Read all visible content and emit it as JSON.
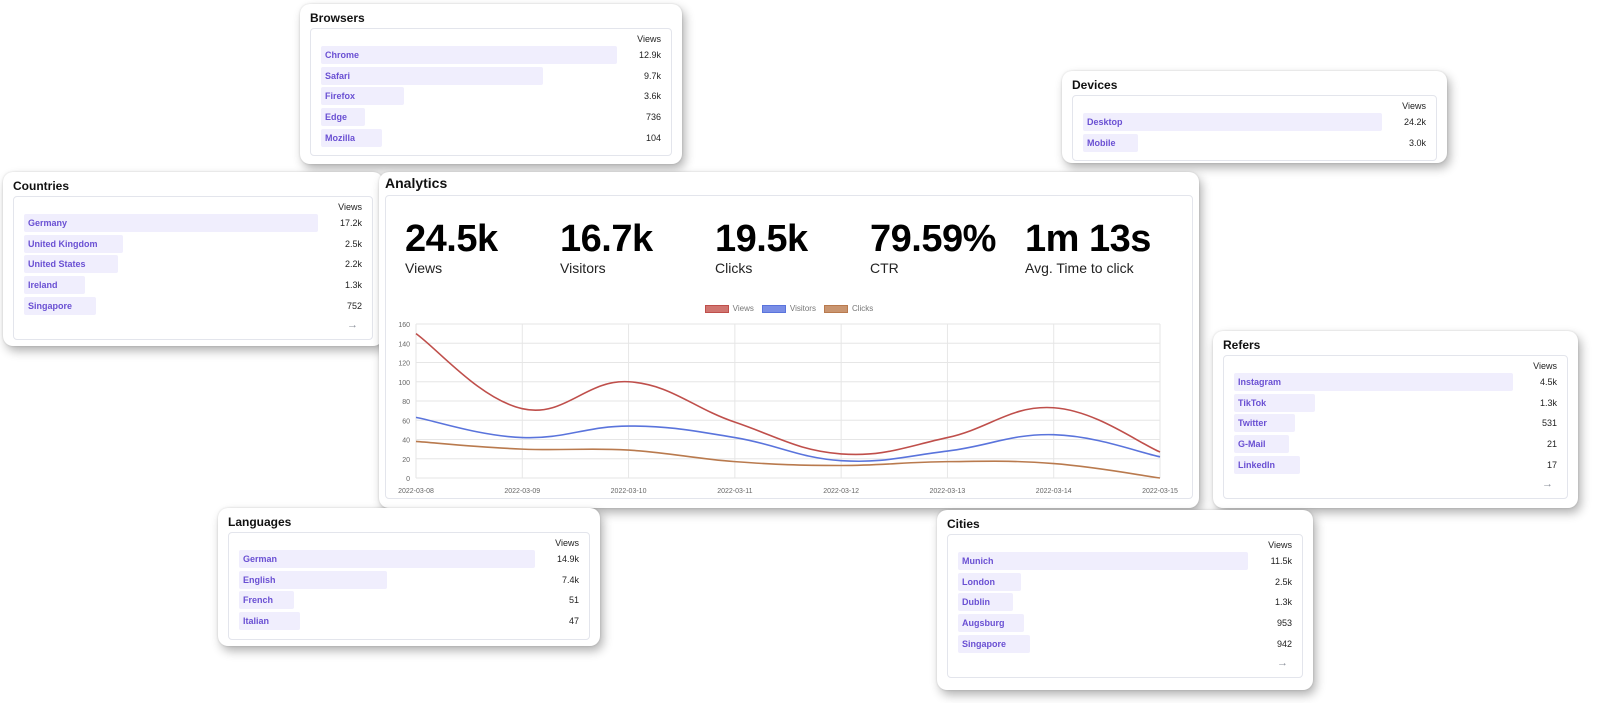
{
  "views_header": "Views",
  "more_icon": "→",
  "analytics": {
    "title": "Analytics",
    "stats": [
      {
        "value": "24.5k",
        "label": "Views"
      },
      {
        "value": "16.7k",
        "label": "Visitors"
      },
      {
        "value": "19.5k",
        "label": "Clicks"
      },
      {
        "value": "79.59%",
        "label": "CTR"
      },
      {
        "value": "1m 13s",
        "label": "Avg. Time to click"
      }
    ]
  },
  "chart_data": {
    "type": "line",
    "title": "",
    "xlabel": "",
    "ylabel": "",
    "x": [
      "2022-03-08",
      "2022-03-09",
      "2022-03-10",
      "2022-03-11",
      "2022-03-12",
      "2022-03-13",
      "2022-03-14",
      "2022-03-15"
    ],
    "ylim": [
      0,
      160
    ],
    "yticks": [
      0,
      20,
      40,
      60,
      80,
      100,
      120,
      140,
      160
    ],
    "grid": true,
    "legend": "top-center",
    "series": [
      {
        "name": "Views",
        "values": [
          150,
          72,
          100,
          58,
          25,
          42,
          73,
          27
        ],
        "color": "#bf4f4b",
        "fill": "#d07570"
      },
      {
        "name": "Visitors",
        "values": [
          63,
          42,
          54,
          42,
          18,
          28,
          45,
          22
        ],
        "color": "#5a74dc",
        "fill": "#7a8ee6"
      },
      {
        "name": "Clicks",
        "values": [
          38,
          30,
          29,
          17,
          13,
          17,
          15,
          0
        ],
        "color": "#b97a4e",
        "fill": "#c99570"
      }
    ]
  },
  "browsers": {
    "title": "Browsers",
    "rows": [
      {
        "label": "Chrome",
        "value": "12.9k",
        "fraction": 1.0
      },
      {
        "label": "Safari",
        "value": "9.7k",
        "fraction": 0.75
      },
      {
        "label": "Firefox",
        "value": "3.6k",
        "fraction": 0.28
      },
      {
        "label": "Edge",
        "value": "736",
        "fraction": 0.057
      },
      {
        "label": "Mozilla",
        "value": "104",
        "fraction": 0.008
      }
    ]
  },
  "devices": {
    "title": "Devices",
    "rows": [
      {
        "label": "Desktop",
        "value": "24.2k",
        "fraction": 1.0
      },
      {
        "label": "Mobile",
        "value": "3.0k",
        "fraction": 0.124
      }
    ]
  },
  "countries": {
    "title": "Countries",
    "rows": [
      {
        "label": "Germany",
        "value": "17.2k",
        "fraction": 1.0
      },
      {
        "label": "United Kingdom",
        "value": "2.5k",
        "fraction": 0.145
      },
      {
        "label": "United States",
        "value": "2.2k",
        "fraction": 0.128
      },
      {
        "label": "Ireland",
        "value": "1.3k",
        "fraction": 0.076
      },
      {
        "label": "Singapore",
        "value": "752",
        "fraction": 0.044
      }
    ]
  },
  "refers": {
    "title": "Refers",
    "rows": [
      {
        "label": "Instagram",
        "value": "4.5k",
        "fraction": 1.0
      },
      {
        "label": "TikTok",
        "value": "1.3k",
        "fraction": 0.29
      },
      {
        "label": "Twitter",
        "value": "531",
        "fraction": 0.118
      },
      {
        "label": "G-Mail",
        "value": "21",
        "fraction": 0.005
      },
      {
        "label": "LinkedIn",
        "value": "17",
        "fraction": 0.004
      }
    ]
  },
  "languages": {
    "title": "Languages",
    "rows": [
      {
        "label": "German",
        "value": "14.9k",
        "fraction": 1.0
      },
      {
        "label": "English",
        "value": "7.4k",
        "fraction": 0.5
      },
      {
        "label": "French",
        "value": "51",
        "fraction": 0.003
      },
      {
        "label": "Italian",
        "value": "47",
        "fraction": 0.003
      }
    ]
  },
  "cities": {
    "title": "Cities",
    "rows": [
      {
        "label": "Munich",
        "value": "11.5k",
        "fraction": 1.0
      },
      {
        "label": "London",
        "value": "2.5k",
        "fraction": 0.217
      },
      {
        "label": "Dublin",
        "value": "1.3k",
        "fraction": 0.113
      },
      {
        "label": "Augsburg",
        "value": "953",
        "fraction": 0.083
      },
      {
        "label": "Singapore",
        "value": "942",
        "fraction": 0.082
      }
    ]
  }
}
